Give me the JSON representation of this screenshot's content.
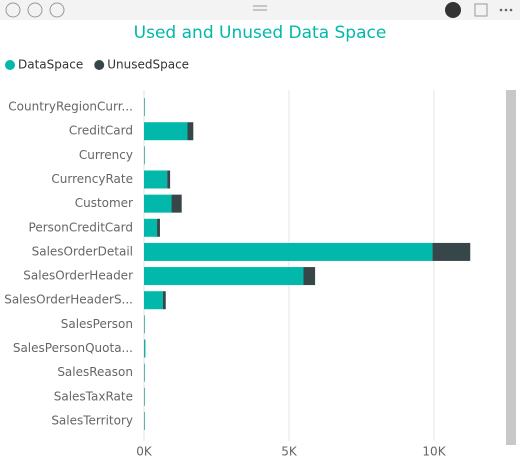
{
  "chart_data": {
    "type": "stacked-bar-horizontal",
    "title": "Used and Unused Data Space",
    "categories": [
      "CountryRegionCurr...",
      "CreditCard",
      "Currency",
      "CurrencyRate",
      "Customer",
      "PersonCreditCard",
      "SalesOrderDetail",
      "SalesOrderHeader",
      "SalesOrderHeaderS...",
      "SalesPerson",
      "SalesPersonQuota...",
      "SalesReason",
      "SalesTaxRate",
      "SalesTerritory"
    ],
    "series": [
      {
        "name": "DataSpace",
        "color": "#01b8aa",
        "values": [
          16,
          1500,
          16,
          800,
          950,
          450,
          9950,
          5500,
          650,
          16,
          40,
          16,
          16,
          16
        ]
      },
      {
        "name": "UnusedSpace",
        "color": "#374649",
        "values": [
          8,
          200,
          8,
          100,
          350,
          100,
          1300,
          400,
          100,
          8,
          8,
          8,
          8,
          8
        ]
      }
    ],
    "xlim": [
      0,
      12000
    ],
    "xticks": [
      {
        "value": 0,
        "label": "0K"
      },
      {
        "value": 5000,
        "label": "5K"
      },
      {
        "value": 10000,
        "label": "10K"
      }
    ],
    "grid": true,
    "legend": "top-left"
  }
}
